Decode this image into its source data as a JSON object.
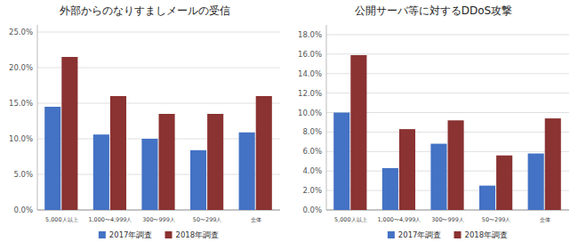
{
  "chart_data": [
    {
      "type": "bar",
      "title": "外部からのなりすましメールの受信",
      "categories": [
        "5,000人以上",
        "1,000〜4,999人",
        "300〜999人",
        "50〜299人",
        "全体"
      ],
      "series": [
        {
          "name": "2017年調査",
          "color": "#4472c4",
          "values": [
            0.145,
            0.106,
            0.1,
            0.084,
            0.109
          ]
        },
        {
          "name": "2018年調査",
          "color": "#8b3232",
          "values": [
            0.215,
            0.16,
            0.135,
            0.135,
            0.16
          ]
        }
      ],
      "ylim": [
        0,
        0.26
      ],
      "yticks": [
        {
          "value": 0.0,
          "label": "0.0%"
        },
        {
          "value": 0.05,
          "label": "5.0%"
        },
        {
          "value": 0.1,
          "label": "10.0%"
        },
        {
          "value": 0.15,
          "label": "15.0%"
        },
        {
          "value": 0.2,
          "label": "20.0%"
        },
        {
          "value": 0.25,
          "label": "25.0%"
        }
      ],
      "grid": true,
      "legend": "bottom"
    },
    {
      "type": "bar",
      "title": "公開サーバ等に対するDDoS攻撃",
      "categories": [
        "5,000人以上",
        "1,000〜4,999人",
        "300〜999人",
        "50〜299人",
        "全体"
      ],
      "series": [
        {
          "name": "2017年調査",
          "color": "#4472c4",
          "values": [
            0.1,
            0.043,
            0.068,
            0.025,
            0.058
          ]
        },
        {
          "name": "2018年調査",
          "color": "#8b3232",
          "values": [
            0.159,
            0.083,
            0.092,
            0.056,
            0.094
          ]
        }
      ],
      "ylim": [
        0,
        0.19
      ],
      "yticks": [
        {
          "value": 0.0,
          "label": "0.0%"
        },
        {
          "value": 0.02,
          "label": "2.0%"
        },
        {
          "value": 0.04,
          "label": "4.0%"
        },
        {
          "value": 0.06,
          "label": "6.0%"
        },
        {
          "value": 0.08,
          "label": "8.0%"
        },
        {
          "value": 0.1,
          "label": "10.0%"
        },
        {
          "value": 0.12,
          "label": "12.0%"
        },
        {
          "value": 0.14,
          "label": "14.0%"
        },
        {
          "value": 0.16,
          "label": "16.0%"
        },
        {
          "value": 0.18,
          "label": "18.0%"
        }
      ],
      "grid": true,
      "legend": "bottom"
    }
  ]
}
